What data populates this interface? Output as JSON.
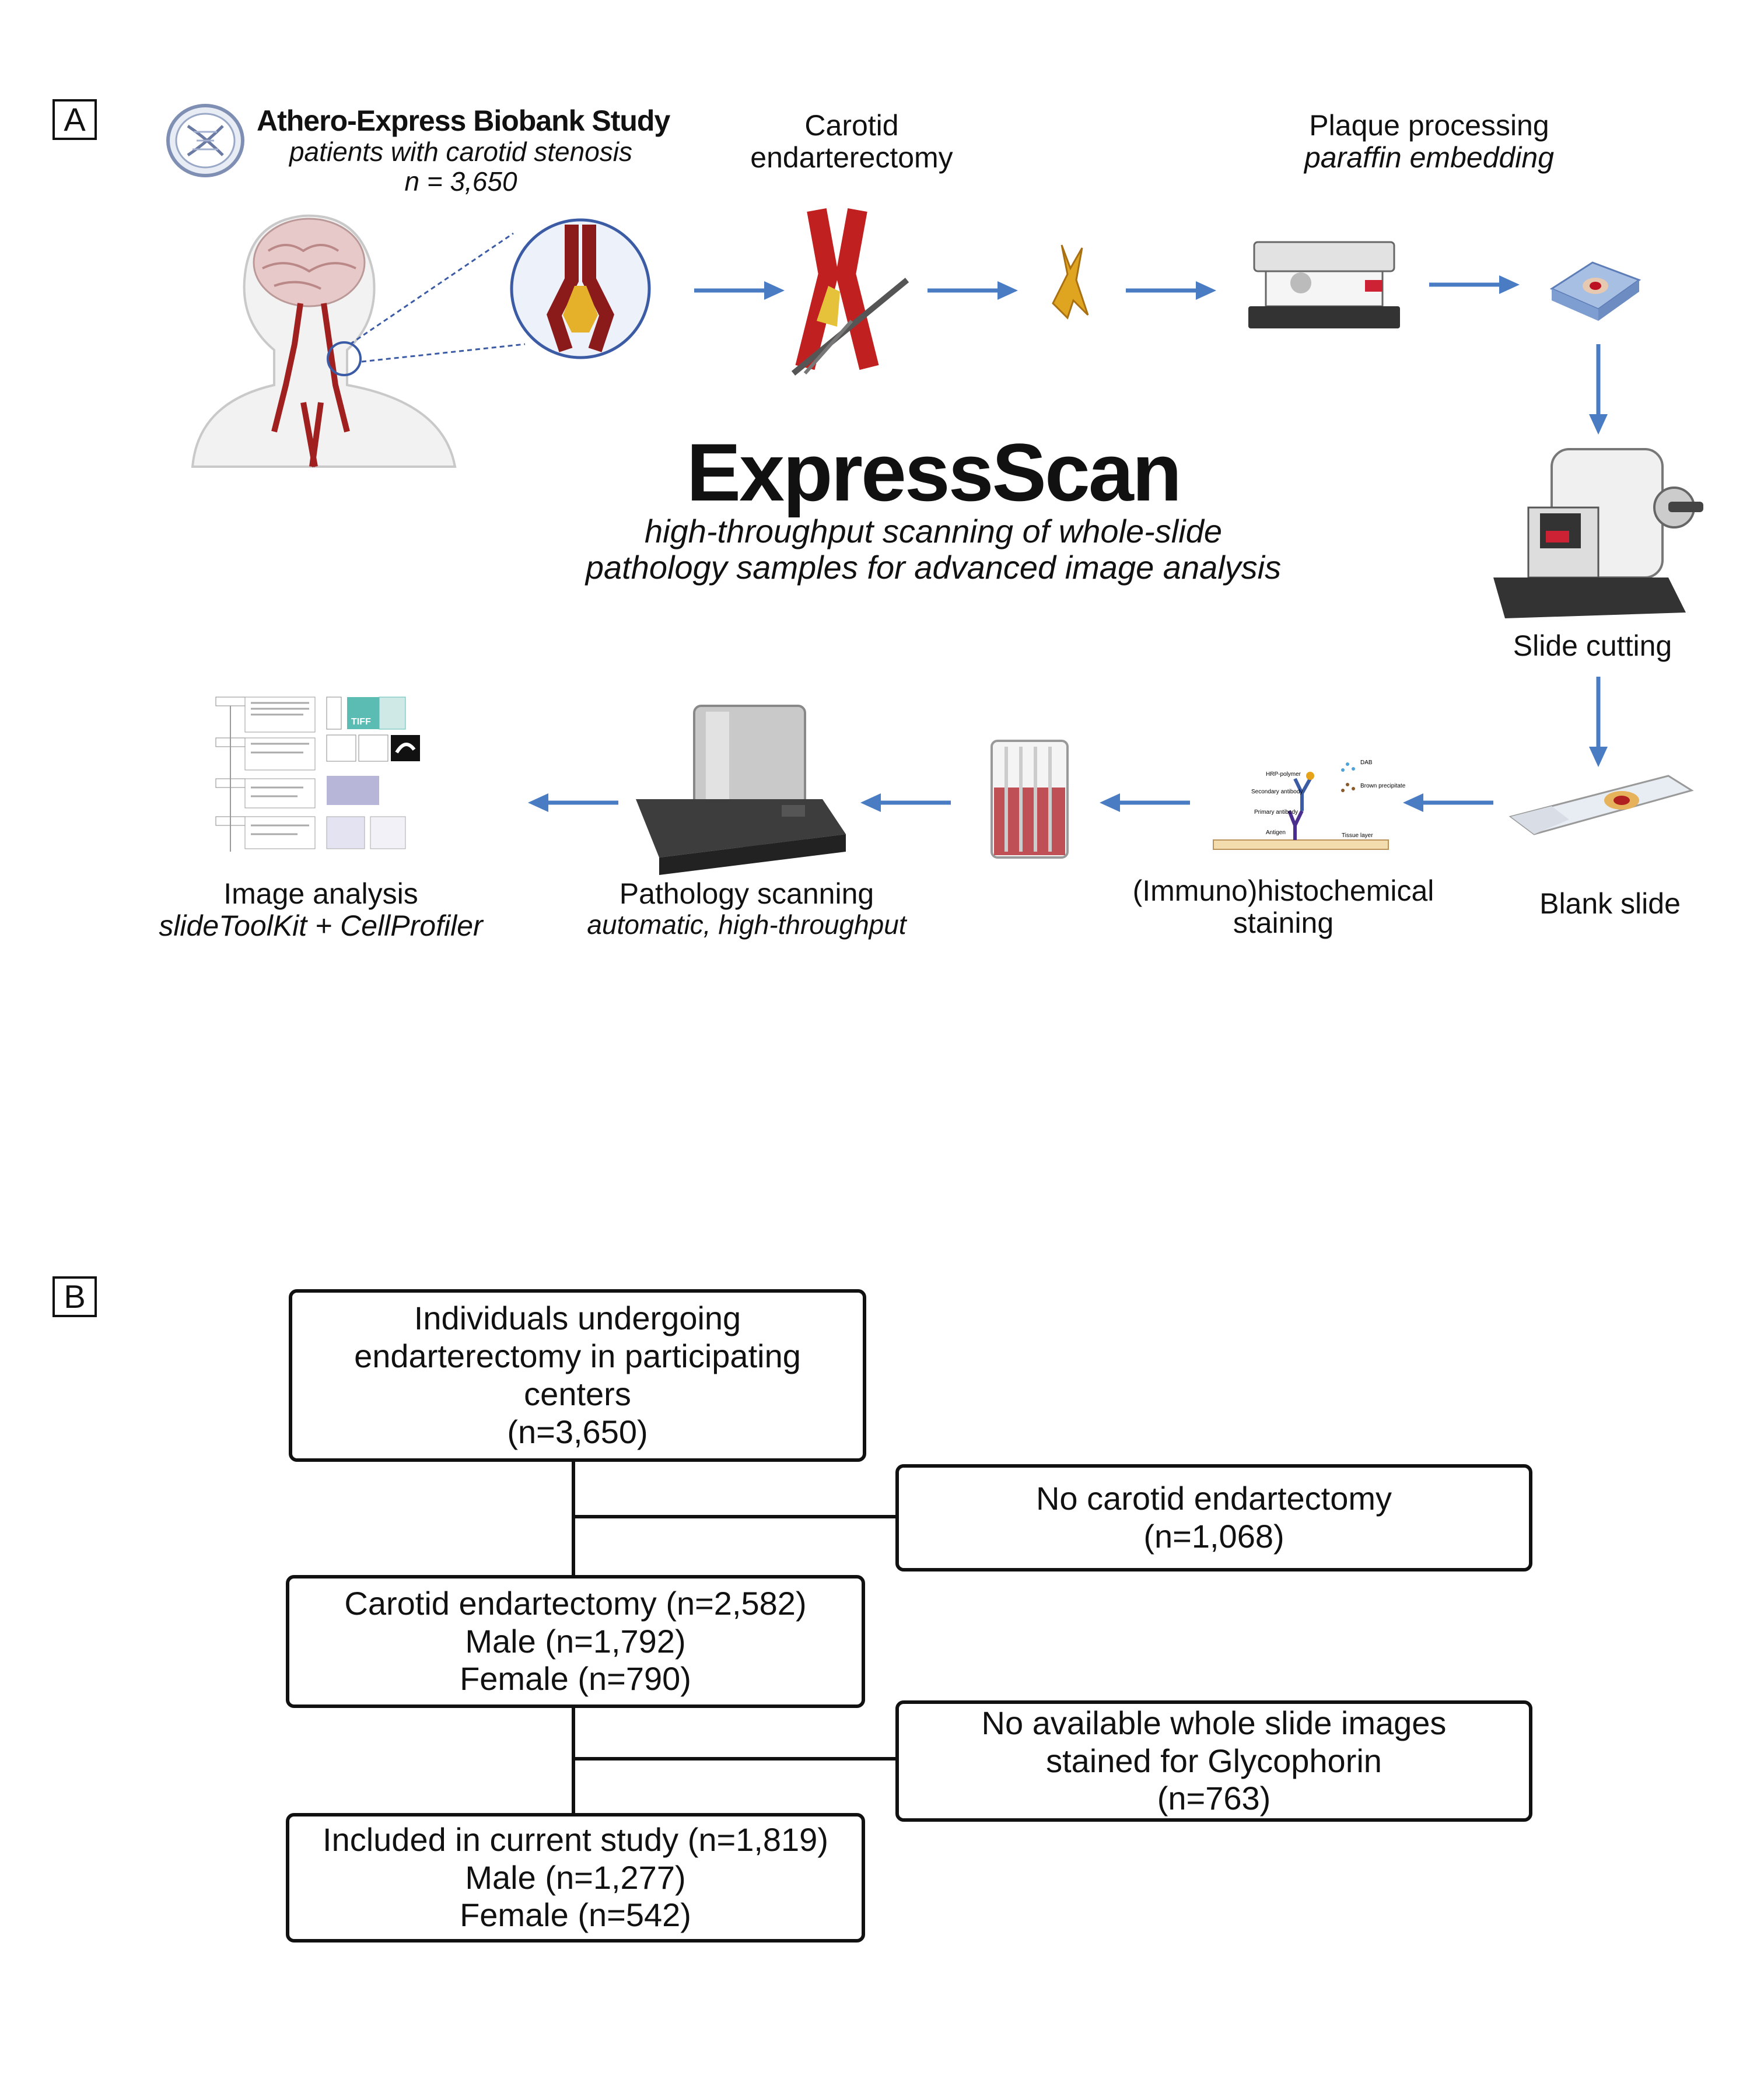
{
  "panel_a": {
    "label": "A",
    "study": {
      "title": "Athero-Express Biobank Study",
      "subtitle": "patients with carotid stenosis",
      "n": "n = 3,650"
    },
    "steps": {
      "endarterectomy": [
        "Carotid",
        "endarterectomy"
      ],
      "plaque_processing": {
        "title": "Plaque processing",
        "subtitle": "paraffin embedding"
      },
      "slide_cutting": "Slide cutting",
      "blank_slide": "Blank slide",
      "staining": [
        "(Immuno)histochemical",
        "staining"
      ],
      "scanning": {
        "title": "Pathology scanning",
        "subtitle": "automatic, high-throughput"
      },
      "analysis": {
        "title": "Image analysis",
        "subtitle": "slideToolKit + CellProfiler"
      }
    },
    "center": {
      "title": "ExpressScan",
      "subtitle_1": "high-throughput scanning of whole-slide",
      "subtitle_2": "pathology samples for advanced image analysis"
    },
    "staining_icon_labels": {
      "hrp": "HRP-polymer",
      "dab": "DAB",
      "secondary": "Secondary antibody",
      "brown": "Brown precipitate",
      "primary": "Primary antibody",
      "antigen": "Antigen",
      "tissue": "Tissue layer"
    },
    "analysis_icon_tiff": "TIFF",
    "arrow_color": "#4a7cc4"
  },
  "panel_b": {
    "label": "B",
    "box_1": [
      "Individuals undergoing",
      "endarterectomy in participating",
      "centers",
      "(n=3,650)"
    ],
    "exclude_1": [
      "No carotid endartectomy",
      "(n=1,068)"
    ],
    "box_2": [
      "Carotid endartectomy (n=2,582)",
      "Male (n=1,792)",
      "Female (n=790)"
    ],
    "exclude_2": [
      "No available whole slide images",
      "stained for Glycophorin",
      "(n=763)"
    ],
    "box_3": [
      "Included in current study (n=1,819)",
      "Male (n=1,277)",
      "Female (n=542)"
    ]
  }
}
